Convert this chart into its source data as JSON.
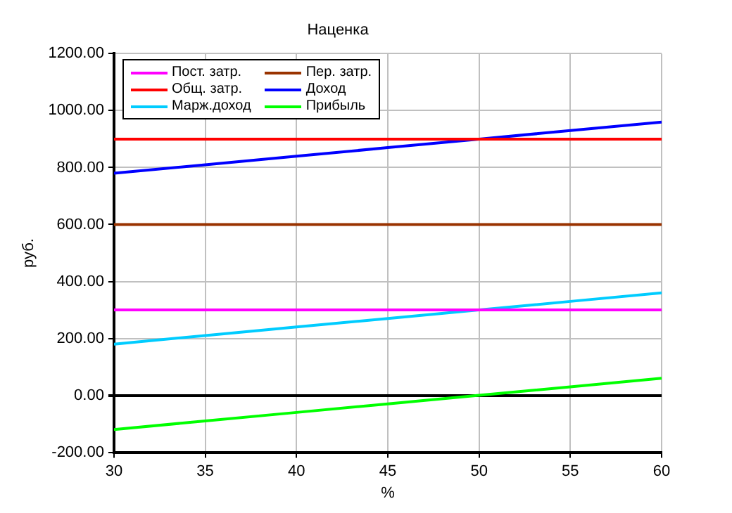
{
  "chart_data": {
    "type": "line",
    "title": "Наценка",
    "xlabel": "%",
    "ylabel": "руб.",
    "x": [
      30,
      35,
      40,
      45,
      50,
      55,
      60
    ],
    "series": [
      {
        "name": "Пост. затр.",
        "color": "#ff00ff",
        "values": [
          300,
          300,
          300,
          300,
          300,
          300,
          300
        ]
      },
      {
        "name": "Пер. затр.",
        "color": "#993300",
        "values": [
          600,
          600,
          600,
          600,
          600,
          600,
          600
        ]
      },
      {
        "name": "Общ. затр.",
        "color": "#ff0000",
        "values": [
          900,
          900,
          900,
          900,
          900,
          900,
          900
        ]
      },
      {
        "name": "Доход",
        "color": "#0000ff",
        "values": [
          780,
          810,
          840,
          870,
          900,
          930,
          960
        ]
      },
      {
        "name": "Марж.доход",
        "color": "#00ccff",
        "values": [
          180,
          210,
          240,
          270,
          300,
          330,
          360
        ]
      },
      {
        "name": "Прибыль",
        "color": "#00ff00",
        "values": [
          -120,
          -90,
          -60,
          -30,
          0,
          30,
          60
        ]
      }
    ],
    "xlim": [
      30,
      60
    ],
    "xticks": [
      30,
      35,
      40,
      45,
      50,
      55,
      60
    ],
    "ylim": [
      -200,
      1200
    ],
    "yticks": [
      {
        "value": -200,
        "label": "-200.00"
      },
      {
        "value": 0,
        "label": "0.00"
      },
      {
        "value": 200,
        "label": "200.00"
      },
      {
        "value": 400,
        "label": "400.00"
      },
      {
        "value": 600,
        "label": "600.00"
      },
      {
        "value": 800,
        "label": "800.00"
      },
      {
        "value": 1000,
        "label": "1000.00"
      },
      {
        "value": 1200,
        "label": "1200.00"
      }
    ],
    "grid": true,
    "legend": "top left",
    "marker": "none",
    "line_style": "solid"
  }
}
